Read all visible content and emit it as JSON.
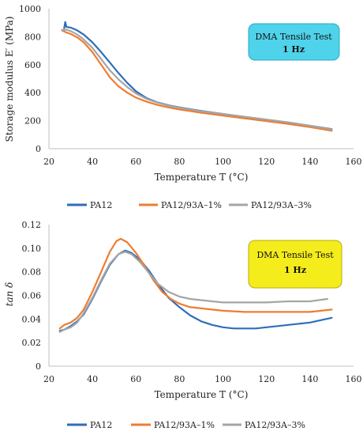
{
  "chart_data": [
    {
      "type": "line",
      "ylabel": "Storage modulus E′ (MPa)",
      "xlabel": "Temperature T (°C)",
      "box": {
        "title": "DMA Tensile Test",
        "subtitle": "1 Hz",
        "color": "#4fd3ea"
      },
      "xlim": [
        20,
        160
      ],
      "ylim": [
        0,
        1000
      ],
      "xticks": [
        "20",
        "40",
        "60",
        "80",
        "100",
        "120",
        "140",
        "160"
      ],
      "yticks": [
        "0",
        "200",
        "400",
        "600",
        "800",
        "1000"
      ],
      "grid": "off",
      "legend_position": "bottom",
      "series": [
        {
          "name": "PA12",
          "color": "#2f6eba",
          "x": [
            27,
            27.5,
            28,
            30,
            33,
            36,
            40,
            44,
            48,
            52,
            56,
            60,
            65,
            70,
            75,
            80,
            90,
            100,
            110,
            120,
            130,
            140,
            150
          ],
          "y": [
            860,
            905,
            870,
            865,
            845,
            815,
            760,
            690,
            615,
            540,
            470,
            410,
            360,
            330,
            310,
            295,
            270,
            248,
            227,
            207,
            187,
            164,
            140
          ]
        },
        {
          "name": "PA12/93A–1%",
          "color": "#ed7d31",
          "x": [
            26,
            28,
            30,
            33,
            36,
            40,
            44,
            48,
            52,
            56,
            60,
            65,
            70,
            75,
            80,
            90,
            100,
            110,
            120,
            130,
            140,
            150
          ],
          "y": [
            845,
            830,
            820,
            795,
            760,
            690,
            600,
            510,
            445,
            400,
            365,
            335,
            312,
            295,
            280,
            257,
            237,
            217,
            197,
            177,
            154,
            128
          ]
        },
        {
          "name": "PA12/93A–3%",
          "color": "#a5a5a5",
          "x": [
            26,
            28,
            30,
            33,
            36,
            40,
            44,
            48,
            52,
            56,
            60,
            65,
            70,
            75,
            80,
            90,
            100,
            110,
            120,
            130,
            140,
            150
          ],
          "y": [
            848,
            850,
            840,
            815,
            780,
            720,
            640,
            560,
            495,
            440,
            395,
            355,
            328,
            308,
            292,
            268,
            248,
            228,
            208,
            188,
            164,
            138
          ]
        }
      ]
    },
    {
      "type": "line",
      "ylabel": "tan δ",
      "xlabel": "Temperature T (°C)",
      "box": {
        "title": "DMA Tensile Test",
        "subtitle": "1 Hz",
        "color": "#f5ec1c"
      },
      "xlim": [
        20,
        160
      ],
      "ylim": [
        0,
        0.12
      ],
      "xticks": [
        "20",
        "40",
        "60",
        "80",
        "100",
        "120",
        "140",
        "160"
      ],
      "yticks": [
        "0",
        "0.02",
        "0.04",
        "0.06",
        "0.08",
        "0.10",
        "0.12"
      ],
      "grid": "off",
      "legend_position": "bottom",
      "series": [
        {
          "name": "PA12",
          "color": "#2f6eba",
          "x": [
            25,
            27,
            30,
            33,
            36,
            40,
            44,
            48,
            52,
            55,
            58,
            62,
            66,
            70,
            75,
            80,
            85,
            90,
            95,
            100,
            105,
            110,
            115,
            120,
            125,
            130,
            135,
            140,
            145,
            150
          ],
          "y": [
            0.03,
            0.031,
            0.034,
            0.038,
            0.044,
            0.057,
            0.072,
            0.086,
            0.095,
            0.098,
            0.096,
            0.09,
            0.081,
            0.07,
            0.058,
            0.05,
            0.043,
            0.038,
            0.035,
            0.033,
            0.032,
            0.032,
            0.032,
            0.033,
            0.034,
            0.035,
            0.036,
            0.037,
            0.039,
            0.041
          ]
        },
        {
          "name": "PA12/93A–1%",
          "color": "#ed7d31",
          "x": [
            25,
            27,
            30,
            33,
            36,
            40,
            44,
            48,
            51,
            53,
            56,
            60,
            64,
            68,
            72,
            76,
            80,
            85,
            90,
            95,
            100,
            110,
            120,
            130,
            140,
            150
          ],
          "y": [
            0.032,
            0.035,
            0.037,
            0.041,
            0.048,
            0.063,
            0.08,
            0.097,
            0.106,
            0.108,
            0.105,
            0.096,
            0.085,
            0.073,
            0.063,
            0.057,
            0.053,
            0.05,
            0.049,
            0.048,
            0.047,
            0.046,
            0.046,
            0.046,
            0.046,
            0.048
          ]
        },
        {
          "name": "PA12/93A–3%",
          "color": "#a5a5a5",
          "x": [
            25,
            27,
            30,
            33,
            36,
            40,
            44,
            48,
            52,
            55,
            58,
            62,
            66,
            70,
            75,
            80,
            85,
            90,
            95,
            100,
            110,
            120,
            130,
            140,
            148
          ],
          "y": [
            0.029,
            0.031,
            0.033,
            0.037,
            0.045,
            0.058,
            0.073,
            0.087,
            0.095,
            0.097,
            0.095,
            0.088,
            0.079,
            0.07,
            0.063,
            0.059,
            0.057,
            0.056,
            0.055,
            0.054,
            0.054,
            0.054,
            0.055,
            0.055,
            0.057
          ]
        }
      ]
    }
  ]
}
